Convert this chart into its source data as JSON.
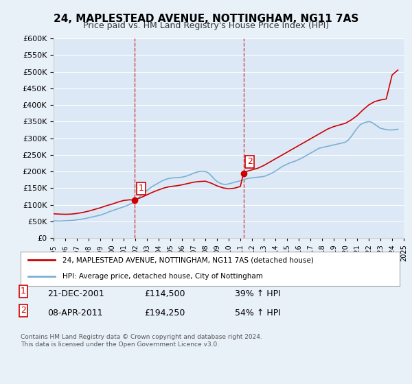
{
  "title": "24, MAPLESTEAD AVENUE, NOTTINGHAM, NG11 7AS",
  "subtitle": "Price paid vs. HM Land Registry's House Price Index (HPI)",
  "background_color": "#e8f0f8",
  "plot_bg_color": "#dce8f5",
  "sale1_date": "21-DEC-2001",
  "sale1_price": 114500,
  "sale1_label": "1",
  "sale2_date": "08-APR-2011",
  "sale2_price": 194250,
  "sale2_label": "2",
  "legend_line1": "24, MAPLESTEAD AVENUE, NOTTINGHAM, NG11 7AS (detached house)",
  "legend_line2": "HPI: Average price, detached house, City of Nottingham",
  "footnote": "Contains HM Land Registry data © Crown copyright and database right 2024.\nThis data is licensed under the Open Government Licence v3.0.",
  "table_row1": "1    21-DEC-2001    £114,500    39% ↑ HPI",
  "table_row2": "2    08-APR-2011    £194,250    54% ↑ HPI",
  "hpi_dates": [
    1995.0,
    1995.25,
    1995.5,
    1995.75,
    1996.0,
    1996.25,
    1996.5,
    1996.75,
    1997.0,
    1997.25,
    1997.5,
    1997.75,
    1998.0,
    1998.25,
    1998.5,
    1998.75,
    1999.0,
    1999.25,
    1999.5,
    1999.75,
    2000.0,
    2000.25,
    2000.5,
    2000.75,
    2001.0,
    2001.25,
    2001.5,
    2001.75,
    2002.0,
    2002.25,
    2002.5,
    2002.75,
    2003.0,
    2003.25,
    2003.5,
    2003.75,
    2004.0,
    2004.25,
    2004.5,
    2004.75,
    2005.0,
    2005.25,
    2005.5,
    2005.75,
    2006.0,
    2006.25,
    2006.5,
    2006.75,
    2007.0,
    2007.25,
    2007.5,
    2007.75,
    2008.0,
    2008.25,
    2008.5,
    2008.75,
    2009.0,
    2009.25,
    2009.5,
    2009.75,
    2010.0,
    2010.25,
    2010.5,
    2010.75,
    2011.0,
    2011.25,
    2011.5,
    2011.75,
    2012.0,
    2012.25,
    2012.5,
    2012.75,
    2013.0,
    2013.25,
    2013.5,
    2013.75,
    2014.0,
    2014.25,
    2014.5,
    2014.75,
    2015.0,
    2015.25,
    2015.5,
    2015.75,
    2016.0,
    2016.25,
    2016.5,
    2016.75,
    2017.0,
    2017.25,
    2017.5,
    2017.75,
    2018.0,
    2018.25,
    2018.5,
    2018.75,
    2019.0,
    2019.25,
    2019.5,
    2019.75,
    2020.0,
    2020.25,
    2020.5,
    2020.75,
    2021.0,
    2021.25,
    2021.5,
    2021.75,
    2022.0,
    2022.25,
    2022.5,
    2022.75,
    2023.0,
    2023.25,
    2023.5,
    2023.75,
    2024.0,
    2024.25,
    2024.5
  ],
  "hpi_values": [
    52000,
    51500,
    51000,
    51500,
    52000,
    52500,
    53000,
    53500,
    55000,
    56000,
    57500,
    59000,
    61000,
    63000,
    65000,
    67000,
    69000,
    72000,
    75000,
    79000,
    82000,
    85000,
    88000,
    91000,
    94000,
    97000,
    101000,
    105000,
    112000,
    120000,
    128000,
    136000,
    143000,
    150000,
    156000,
    161000,
    166000,
    171000,
    175000,
    178000,
    180000,
    181000,
    181500,
    182000,
    183000,
    185000,
    188000,
    191000,
    195000,
    198000,
    200000,
    201000,
    200000,
    196000,
    188000,
    178000,
    170000,
    165000,
    162000,
    161000,
    163000,
    165000,
    168000,
    170000,
    172000,
    175000,
    178000,
    180000,
    181000,
    182000,
    183000,
    184000,
    185000,
    188000,
    192000,
    196000,
    201000,
    207000,
    213000,
    218000,
    222000,
    226000,
    229000,
    232000,
    236000,
    240000,
    245000,
    250000,
    255000,
    260000,
    265000,
    270000,
    272000,
    274000,
    276000,
    278000,
    280000,
    282000,
    284000,
    286000,
    288000,
    295000,
    305000,
    318000,
    330000,
    340000,
    345000,
    348000,
    350000,
    348000,
    342000,
    336000,
    330000,
    328000,
    326000,
    325000,
    325000,
    326000,
    327000
  ],
  "price_dates": [
    2001.97,
    2011.27
  ],
  "price_values": [
    114500,
    194250
  ],
  "red_line_dates": [
    1995.0,
    1995.5,
    1996.0,
    1996.5,
    1997.0,
    1997.5,
    1998.0,
    1998.5,
    1999.0,
    1999.5,
    2000.0,
    2000.5,
    2001.0,
    2001.5,
    2001.97,
    2001.97,
    2002.5,
    2003.0,
    2003.5,
    2004.0,
    2004.5,
    2005.0,
    2005.5,
    2006.0,
    2006.5,
    2007.0,
    2007.5,
    2008.0,
    2008.5,
    2009.0,
    2009.5,
    2010.0,
    2010.5,
    2011.0,
    2011.27,
    2011.27,
    2011.5,
    2012.0,
    2012.5,
    2013.0,
    2013.5,
    2014.0,
    2014.5,
    2015.0,
    2015.5,
    2016.0,
    2016.5,
    2017.0,
    2017.5,
    2018.0,
    2018.5,
    2019.0,
    2019.5,
    2020.0,
    2020.5,
    2021.0,
    2021.5,
    2022.0,
    2022.5,
    2023.0,
    2023.5,
    2024.0,
    2024.5
  ],
  "red_line_values": [
    73000,
    72000,
    71500,
    72000,
    74000,
    77000,
    81000,
    86000,
    91000,
    97000,
    102000,
    108000,
    113000,
    115000,
    114500,
    114500,
    122000,
    130000,
    138000,
    145000,
    151000,
    155000,
    157000,
    160000,
    164000,
    168000,
    170000,
    171000,
    165000,
    157000,
    151000,
    148000,
    150000,
    155000,
    194250,
    194250,
    200000,
    205000,
    210000,
    218000,
    228000,
    238000,
    248000,
    258000,
    268000,
    278000,
    288000,
    298000,
    308000,
    318000,
    328000,
    335000,
    340000,
    345000,
    355000,
    368000,
    385000,
    400000,
    410000,
    415000,
    418000,
    490000,
    505000
  ],
  "vline1_x": 2001.97,
  "vline2_x": 2011.27,
  "ylim": [
    0,
    600000
  ],
  "xlim_min": 1995.0,
  "xlim_max": 2025.0,
  "xticks": [
    1995,
    1996,
    1997,
    1998,
    1999,
    2000,
    2001,
    2002,
    2003,
    2004,
    2005,
    2006,
    2007,
    2008,
    2009,
    2010,
    2011,
    2012,
    2013,
    2014,
    2015,
    2016,
    2017,
    2018,
    2019,
    2020,
    2021,
    2022,
    2023,
    2024,
    2025
  ],
  "yticks": [
    0,
    50000,
    100000,
    150000,
    200000,
    250000,
    300000,
    350000,
    400000,
    450000,
    500000,
    550000,
    600000
  ]
}
